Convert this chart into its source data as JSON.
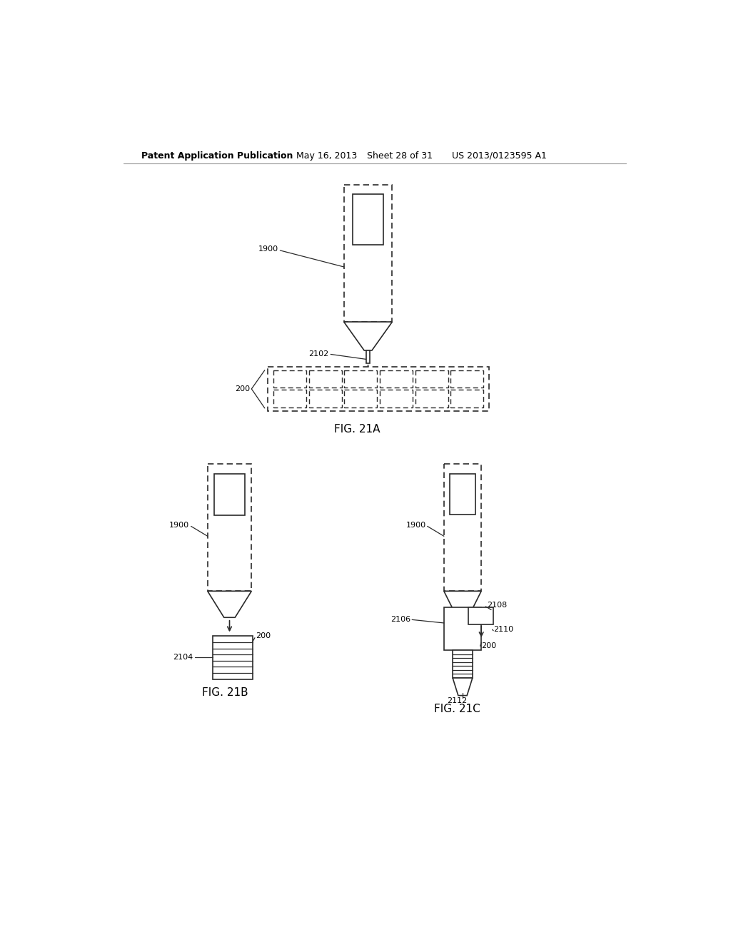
{
  "bg_color": "#ffffff",
  "line_color": "#2a2a2a",
  "header_text": "Patent Application Publication",
  "header_date": "May 16, 2013",
  "header_sheet": "Sheet 28 of 31",
  "header_patent": "US 2013/0123595 A1",
  "fig21a_label": "FIG. 21A",
  "fig21b_label": "FIG. 21B",
  "fig21c_label": "FIG. 21C"
}
